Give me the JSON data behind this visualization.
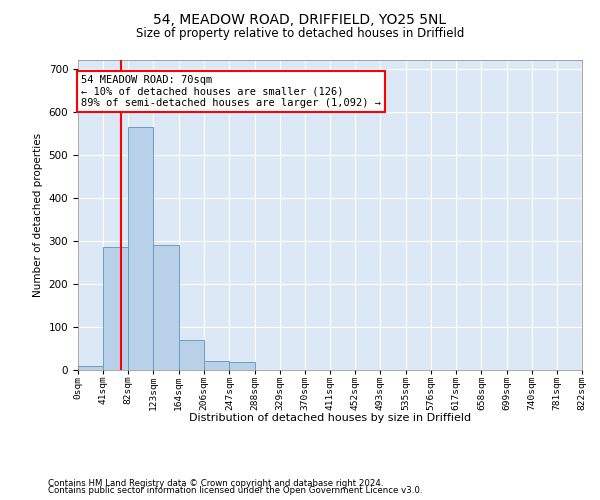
{
  "title1": "54, MEADOW ROAD, DRIFFIELD, YO25 5NL",
  "title2": "Size of property relative to detached houses in Driffield",
  "xlabel": "Distribution of detached houses by size in Driffield",
  "ylabel": "Number of detached properties",
  "bin_edges": [
    0,
    41,
    82,
    123,
    164,
    206,
    247,
    288,
    329,
    370,
    411,
    452,
    493,
    535,
    576,
    617,
    658,
    699,
    740,
    781,
    822
  ],
  "bin_labels": [
    "0sqm",
    "41sqm",
    "82sqm",
    "123sqm",
    "164sqm",
    "206sqm",
    "247sqm",
    "288sqm",
    "329sqm",
    "370sqm",
    "411sqm",
    "452sqm",
    "493sqm",
    "535sqm",
    "576sqm",
    "617sqm",
    "658sqm",
    "699sqm",
    "740sqm",
    "781sqm",
    "822sqm"
  ],
  "counts": [
    10,
    285,
    565,
    290,
    70,
    22,
    18,
    0,
    0,
    0,
    0,
    0,
    0,
    0,
    0,
    0,
    0,
    0,
    0,
    0
  ],
  "bar_color": "#b8d0e8",
  "bar_edge_color": "#6a9fc0",
  "vline_x": 70,
  "vline_color": "red",
  "annotation_text": "54 MEADOW ROAD: 70sqm\n← 10% of detached houses are smaller (126)\n89% of semi-detached houses are larger (1,092) →",
  "annotation_box_color": "white",
  "annotation_box_edge": "red",
  "ylim": [
    0,
    720
  ],
  "yticks": [
    0,
    100,
    200,
    300,
    400,
    500,
    600,
    700
  ],
  "background_color": "#dce8f5",
  "footer1": "Contains HM Land Registry data © Crown copyright and database right 2024.",
  "footer2": "Contains public sector information licensed under the Open Government Licence v3.0."
}
